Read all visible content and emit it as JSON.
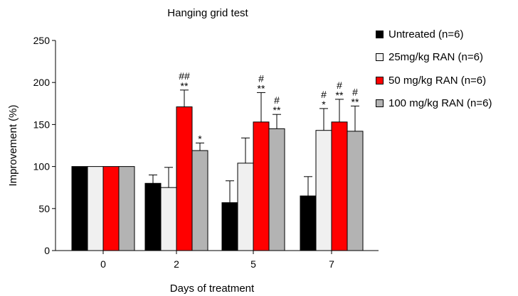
{
  "chart_data": {
    "type": "bar",
    "title": "Hanging grid test",
    "xlabel": "Days of treatment",
    "ylabel": "Improvement (%)",
    "ylim": [
      0,
      250
    ],
    "yticks": [
      0,
      50,
      100,
      150,
      200,
      250
    ],
    "categories": [
      "0",
      "2",
      "5",
      "7"
    ],
    "grid": false,
    "legend_position": "right",
    "series": [
      {
        "name": "Untreated (n=6)",
        "color": "#000000",
        "values": [
          100,
          80,
          57,
          65
        ],
        "errors": [
          0,
          10,
          26,
          23
        ]
      },
      {
        "name": "25mg/kg RAN (n=6)",
        "color": "#f0f0f0",
        "values": [
          100,
          75,
          104,
          143
        ],
        "errors": [
          0,
          24,
          30,
          26
        ]
      },
      {
        "name": "50 mg/kg RAN (n=6)",
        "color": "#ff0000",
        "values": [
          100,
          171,
          153,
          153
        ],
        "errors": [
          0,
          20,
          35,
          27
        ]
      },
      {
        "name": "100 mg/kg RAN (n=6)",
        "color": "#b3b3b3",
        "values": [
          100,
          119,
          145,
          142
        ],
        "errors": [
          0,
          9,
          17,
          30
        ]
      }
    ],
    "annotations": [
      {
        "category": 1,
        "series": 2,
        "lines": [
          "##",
          "**"
        ]
      },
      {
        "category": 1,
        "series": 3,
        "lines": [
          "*"
        ]
      },
      {
        "category": 2,
        "series": 2,
        "lines": [
          "#",
          "**"
        ]
      },
      {
        "category": 2,
        "series": 3,
        "lines": [
          "#",
          "**"
        ]
      },
      {
        "category": 3,
        "series": 1,
        "lines": [
          "#",
          "*"
        ]
      },
      {
        "category": 3,
        "series": 2,
        "lines": [
          "#",
          "**"
        ]
      },
      {
        "category": 3,
        "series": 3,
        "lines": [
          "#",
          "**"
        ]
      }
    ]
  }
}
